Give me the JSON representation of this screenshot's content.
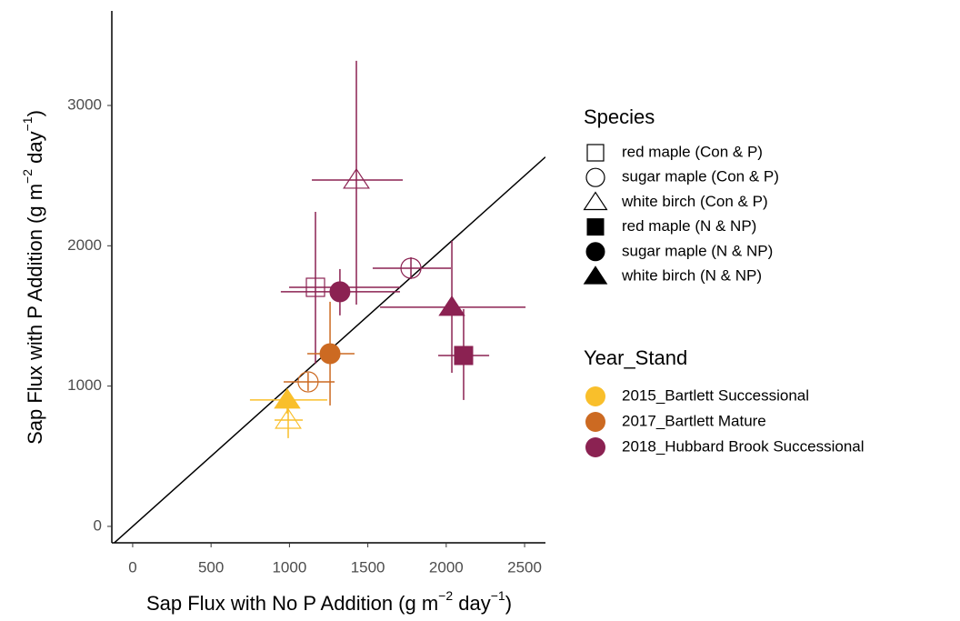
{
  "chart_data": {
    "type": "scatter",
    "xlabel": [
      "Sap Flux with No P Addition (g m",
      "−2",
      " day",
      "−1",
      ")"
    ],
    "ylabel": [
      "Sap Flux with P Addition (g m",
      "−2",
      " day",
      "−1",
      ")"
    ],
    "xlim": [
      -133,
      2633
    ],
    "ylim": [
      -117,
      3674
    ],
    "xticks": [
      0,
      500,
      1000,
      1500,
      2000,
      2500
    ],
    "yticks": [
      0,
      1000,
      2000,
      3000
    ],
    "reference_line": {
      "slope": 1,
      "intercept": 0,
      "color": "#000000"
    },
    "shape_legend": {
      "title": "Species",
      "items": [
        {
          "name": "red maple (Con & P)",
          "shape": "square",
          "filled": false
        },
        {
          "name": "sugar maple (Con & P)",
          "shape": "circle",
          "filled": false
        },
        {
          "name": "white birch (Con & P)",
          "shape": "triangle",
          "filled": false
        },
        {
          "name": "red maple (N & NP)",
          "shape": "square",
          "filled": true
        },
        {
          "name": "sugar maple (N & NP)",
          "shape": "circle",
          "filled": true
        },
        {
          "name": "white birch (N & NP)",
          "shape": "triangle",
          "filled": true
        }
      ]
    },
    "color_legend": {
      "title": "Year_Stand",
      "items": [
        {
          "name": "2015_Bartlett Successional",
          "color": "#f9bf2b"
        },
        {
          "name": "2017_Bartlett Mature",
          "color": "#cc6a22"
        },
        {
          "name": "2018_Hubbard Brook Successional",
          "color": "#8b2252"
        }
      ]
    },
    "points": [
      {
        "species": "red maple (Con & P)",
        "year_stand": "2018_Hubbard Brook Successional",
        "x": 1166,
        "y": 1704,
        "x_low": 998,
        "x_high": 1705,
        "y_low": 1160,
        "y_high": 2242
      },
      {
        "species": "sugar maple (Con & P)",
        "year_stand": "2018_Hubbard Brook Successional",
        "x": 1775,
        "y": 1840,
        "x_low": 1531,
        "x_high": 2030,
        "y_low": 1763,
        "y_high": 1918
      },
      {
        "species": "white birch (Con & P)",
        "year_stand": "2018_Hubbard Brook Successional",
        "x": 1427,
        "y": 2469,
        "x_low": 1143,
        "x_high": 1723,
        "y_low": 1581,
        "y_high": 3318
      },
      {
        "species": "red maple (N & NP)",
        "year_stand": "2018_Hubbard Brook Successional",
        "x": 2111,
        "y": 1218,
        "x_low": 1949,
        "x_high": 2274,
        "y_low": 901,
        "y_high": 1549
      },
      {
        "species": "sugar maple (N & NP)",
        "year_stand": "2018_Hubbard Brook Successional",
        "x": 1322,
        "y": 1672,
        "x_low": 945,
        "x_high": 1705,
        "y_low": 1504,
        "y_high": 1834
      },
      {
        "species": "white birch (N & NP)",
        "year_stand": "2018_Hubbard Brook Successional",
        "x": 2036,
        "y": 1562,
        "x_low": 1578,
        "x_high": 2506,
        "y_low": 1095,
        "y_high": 2035
      },
      {
        "species": "sugar maple (Con & P)",
        "year_stand": "2017_Bartlett Mature",
        "x": 1119,
        "y": 1030,
        "x_low": 963,
        "x_high": 1288,
        "y_low": 966,
        "y_high": 1095
      },
      {
        "species": "sugar maple (N & NP)",
        "year_stand": "2017_Bartlett Mature",
        "x": 1259,
        "y": 1231,
        "x_low": 1114,
        "x_high": 1415,
        "y_low": 862,
        "y_high": 1601
      },
      {
        "species": "white birch (Con & P)",
        "year_stand": "2015_Bartlett Successional",
        "x": 992,
        "y": 758,
        "x_low": 905,
        "x_high": 1085,
        "y_low": 629,
        "y_high": 901
      },
      {
        "species": "white birch (N & NP)",
        "year_stand": "2015_Bartlett Successional",
        "x": 986,
        "y": 901,
        "x_low": 748,
        "x_high": 1241,
        "y_low": 804,
        "y_high": 979
      }
    ]
  }
}
